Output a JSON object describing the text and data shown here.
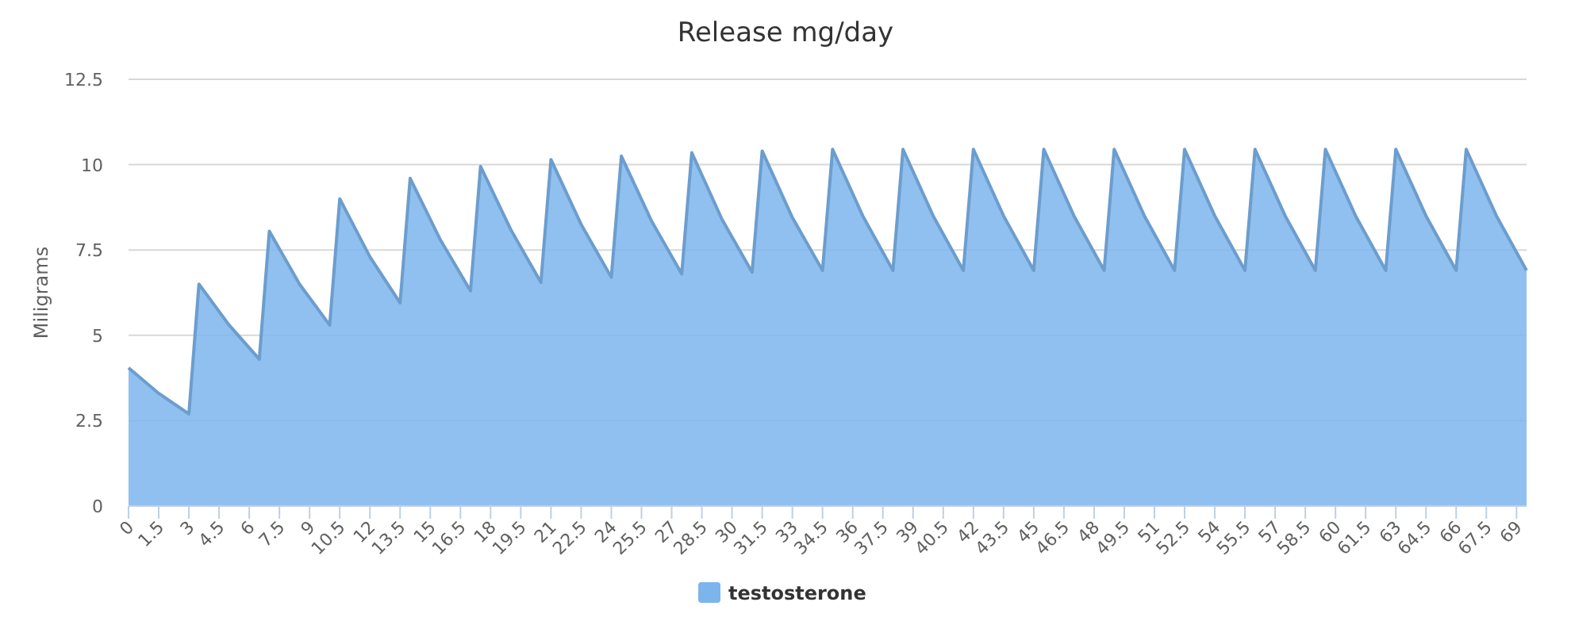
{
  "chart_data": {
    "type": "area",
    "title": "Release mg/day",
    "ylabel": "Miligrams",
    "xlim": [
      0,
      69.5
    ],
    "xticks": [
      0,
      1.5,
      3,
      4.5,
      6,
      7.5,
      9,
      10.5,
      12,
      13.5,
      15,
      16.5,
      18,
      19.5,
      21,
      22.5,
      24,
      25.5,
      27,
      28.5,
      30,
      31.5,
      33,
      34.5,
      36,
      37.5,
      39,
      40.5,
      42,
      43.5,
      45,
      46.5,
      48,
      49.5,
      51,
      52.5,
      54,
      55.5,
      57,
      58.5,
      60,
      61.5,
      63,
      64.5,
      66,
      67.5,
      69
    ],
    "ylim": [
      0,
      12.5
    ],
    "yticks": [
      0,
      2.5,
      5,
      7.5,
      10,
      12.5
    ],
    "grid": "y",
    "legend": "bottom",
    "series": [
      {
        "name": "testosterone",
        "color": "#7cb5ec",
        "x": [
          0,
          1.5,
          3,
          3.5,
          5,
          6.5,
          7,
          8.5,
          10,
          10.5,
          12,
          13.5,
          14,
          15.5,
          17,
          17.5,
          19,
          20.5,
          21,
          22.5,
          24,
          24.5,
          26,
          27.5,
          28,
          29.5,
          31,
          31.5,
          33,
          34.5,
          35,
          36.5,
          38,
          38.5,
          40,
          41.5,
          42,
          43.5,
          45,
          45.5,
          47,
          48.5,
          49,
          50.5,
          52,
          52.5,
          54,
          55.5,
          56,
          57.5,
          59,
          59.5,
          61,
          62.5,
          63,
          64.5,
          66,
          66.5,
          68,
          69.5
        ],
        "values": [
          4.05,
          3.3,
          2.7,
          6.5,
          5.3,
          4.3,
          8.05,
          6.5,
          5.3,
          9.0,
          7.3,
          5.95,
          9.6,
          7.8,
          6.3,
          9.95,
          8.1,
          6.55,
          10.15,
          8.25,
          6.7,
          10.25,
          8.35,
          6.8,
          10.35,
          8.4,
          6.85,
          10.4,
          8.45,
          6.9,
          10.45,
          8.5,
          6.9,
          10.45,
          8.5,
          6.9,
          10.45,
          8.5,
          6.9,
          10.45,
          8.5,
          6.9,
          10.45,
          8.5,
          6.9,
          10.45,
          8.5,
          6.9,
          10.45,
          8.5,
          6.9,
          10.45,
          8.5,
          6.9,
          10.45,
          8.5,
          6.9,
          10.45,
          8.5,
          6.9
        ]
      }
    ]
  }
}
